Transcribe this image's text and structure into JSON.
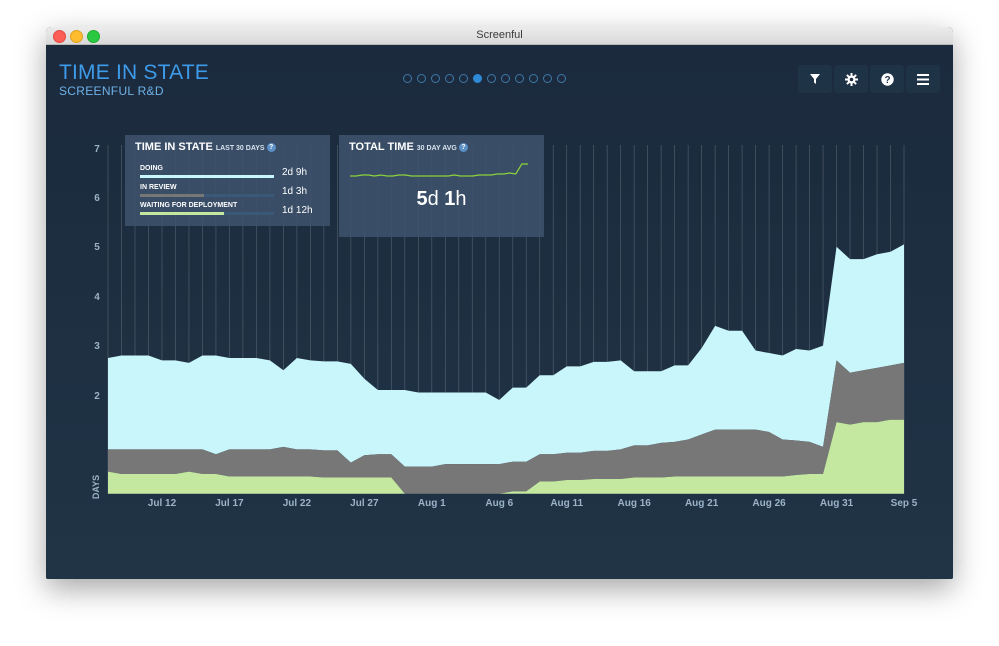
{
  "window": {
    "title": "Screenful"
  },
  "header": {
    "title": "TIME IN STATE",
    "subtitle": "SCREENFUL R&D"
  },
  "pagination": {
    "count": 12,
    "active_index": 5
  },
  "toolbar": [
    {
      "name": "filter-button",
      "icon": "filter-icon"
    },
    {
      "name": "settings-button",
      "icon": "gear-icon"
    },
    {
      "name": "help-button",
      "icon": "help-icon"
    },
    {
      "name": "menu-button",
      "icon": "hamburger-menu-icon"
    }
  ],
  "state_panel": {
    "title": "TIME IN STATE",
    "subtitle": "LAST 30 DAYS",
    "help": "?",
    "rows": [
      {
        "label": "DOING",
        "value": "2d 9h",
        "fraction": 1.0,
        "color": "#c9f6fb"
      },
      {
        "label": "IN REVIEW",
        "value": "1d 3h",
        "fraction": 0.48,
        "color": "#777777"
      },
      {
        "label": "WAITING FOR DEPLOYMENT",
        "value": "1d 12h",
        "fraction": 0.63,
        "color": "#c5e8a1"
      }
    ]
  },
  "total_panel": {
    "title": "TOTAL TIME",
    "subtitle": "30 DAY AVG",
    "help": "?",
    "value_days": "5",
    "unit_days": "d",
    "value_hours": "1",
    "unit_hours": "h"
  },
  "colors": {
    "doing": "#c9f6fb",
    "review": "#777777",
    "waiting": "#c5e8a1",
    "accent": "#3d9be9",
    "sparkline": "#8cd43c"
  },
  "chart_data": {
    "type": "area",
    "stacked": true,
    "ylabel": "DAYS",
    "ylim": [
      0,
      7
    ],
    "y_ticks": [
      2,
      3,
      4,
      5,
      6,
      7
    ],
    "x_ticks": [
      "Jul 12",
      "Jul 17",
      "Jul 22",
      "Jul 27",
      "Aug 1",
      "Aug 6",
      "Aug 11",
      "Aug 16",
      "Aug 21",
      "Aug 26",
      "Aug 31",
      "Sep 5"
    ],
    "x": [
      "Jul 8",
      "Jul 9",
      "Jul 10",
      "Jul 11",
      "Jul 12",
      "Jul 13",
      "Jul 14",
      "Jul 15",
      "Jul 16",
      "Jul 17",
      "Jul 18",
      "Jul 19",
      "Jul 20",
      "Jul 21",
      "Jul 22",
      "Jul 23",
      "Jul 24",
      "Jul 25",
      "Jul 26",
      "Jul 27",
      "Jul 28",
      "Jul 29",
      "Jul 30",
      "Jul 31",
      "Aug 1",
      "Aug 2",
      "Aug 3",
      "Aug 4",
      "Aug 5",
      "Aug 6",
      "Aug 7",
      "Aug 8",
      "Aug 9",
      "Aug 10",
      "Aug 11",
      "Aug 12",
      "Aug 13",
      "Aug 14",
      "Aug 15",
      "Aug 16",
      "Aug 17",
      "Aug 18",
      "Aug 19",
      "Aug 20",
      "Aug 21",
      "Aug 22",
      "Aug 23",
      "Aug 24",
      "Aug 25",
      "Aug 26",
      "Aug 27",
      "Aug 28",
      "Aug 29",
      "Aug 30",
      "Aug 31",
      "Sep 1",
      "Sep 2",
      "Sep 3",
      "Sep 4",
      "Sep 5"
    ],
    "series": [
      {
        "name": "WAITING FOR DEPLOYMENT",
        "values": [
          0.45,
          0.4,
          0.4,
          0.4,
          0.4,
          0.4,
          0.45,
          0.4,
          0.4,
          0.35,
          0.35,
          0.35,
          0.35,
          0.35,
          0.35,
          0.35,
          0.33,
          0.33,
          0.33,
          0.33,
          0.33,
          0.33,
          0.0,
          0.0,
          0.0,
          0.0,
          0.0,
          0.0,
          0.0,
          0.0,
          0.05,
          0.05,
          0.25,
          0.25,
          0.28,
          0.28,
          0.3,
          0.3,
          0.3,
          0.33,
          0.33,
          0.33,
          0.35,
          0.35,
          0.35,
          0.35,
          0.35,
          0.35,
          0.35,
          0.35,
          0.35,
          0.38,
          0.4,
          0.4,
          1.45,
          1.4,
          1.45,
          1.45,
          1.5,
          1.5
        ]
      },
      {
        "name": "IN REVIEW",
        "values": [
          0.45,
          0.5,
          0.5,
          0.5,
          0.5,
          0.5,
          0.45,
          0.5,
          0.4,
          0.55,
          0.55,
          0.55,
          0.55,
          0.6,
          0.55,
          0.55,
          0.55,
          0.55,
          0.3,
          0.45,
          0.47,
          0.47,
          0.55,
          0.55,
          0.55,
          0.6,
          0.6,
          0.6,
          0.6,
          0.6,
          0.6,
          0.6,
          0.55,
          0.55,
          0.55,
          0.55,
          0.57,
          0.57,
          0.6,
          0.65,
          0.65,
          0.7,
          0.7,
          0.75,
          0.85,
          0.95,
          0.95,
          0.95,
          0.95,
          0.9,
          0.75,
          0.7,
          0.65,
          0.55,
          1.25,
          1.05,
          1.05,
          1.1,
          1.1,
          1.15
        ]
      },
      {
        "name": "DOING",
        "values": [
          1.85,
          1.9,
          1.9,
          1.9,
          1.8,
          1.8,
          1.75,
          1.9,
          2.0,
          1.85,
          1.85,
          1.85,
          1.8,
          1.55,
          1.85,
          1.8,
          1.8,
          1.8,
          2.0,
          1.55,
          1.3,
          1.3,
          1.55,
          1.5,
          1.5,
          1.45,
          1.45,
          1.45,
          1.45,
          1.3,
          1.5,
          1.5,
          1.6,
          1.6,
          1.75,
          1.75,
          1.8,
          1.8,
          1.8,
          1.5,
          1.5,
          1.45,
          1.55,
          1.5,
          1.75,
          2.1,
          2.0,
          2.0,
          1.6,
          1.6,
          1.7,
          1.85,
          1.85,
          2.05,
          2.3,
          2.3,
          2.25,
          2.3,
          2.3,
          2.4
        ]
      }
    ]
  },
  "sparkline": {
    "values": [
      4.8,
      4.8,
      4.85,
      4.85,
      4.8,
      4.85,
      4.8,
      4.8,
      4.85,
      4.85,
      4.8,
      4.8,
      4.8,
      4.8,
      4.8,
      4.8,
      4.8,
      4.85,
      4.8,
      4.8,
      4.8,
      4.85,
      4.85,
      4.85,
      4.9,
      4.9,
      4.95,
      4.9,
      5.4,
      5.4
    ]
  }
}
